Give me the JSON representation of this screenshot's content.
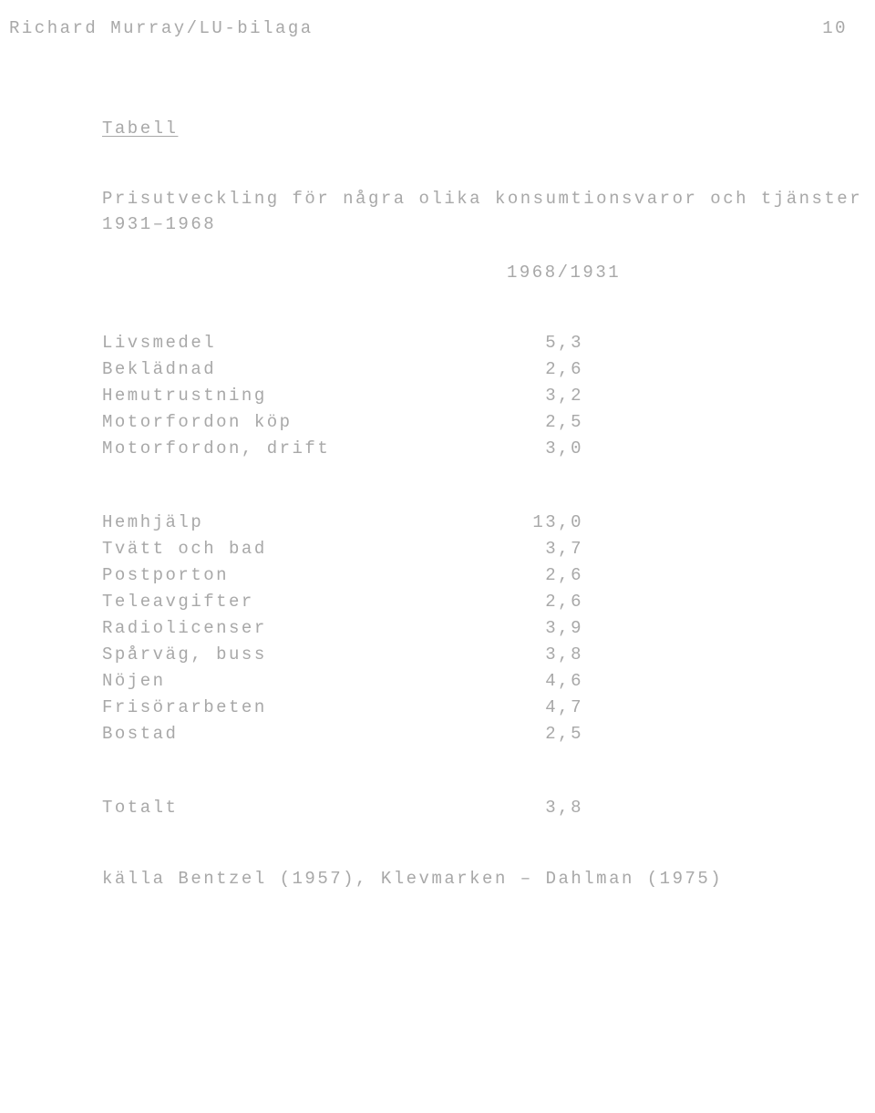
{
  "header": {
    "title": "Richard Murray/LU-bilaga",
    "page": "10"
  },
  "table": {
    "heading": "Tabell",
    "caption_line1": "Prisutveckling för några olika konsumtionsvaror och tjänster",
    "caption_line2": "1931–1968",
    "year_header": "1968/1931",
    "group1": [
      {
        "label": "Livsmedel",
        "value": "5,3"
      },
      {
        "label": "Beklädnad",
        "value": "2,6"
      },
      {
        "label": "Hemutrustning",
        "value": "3,2"
      },
      {
        "label": "Motorfordon köp",
        "value": "2,5"
      },
      {
        "label": "Motorfordon, drift",
        "value": "3,0"
      }
    ],
    "group2": [
      {
        "label": "Hemhjälp",
        "value": "13,0"
      },
      {
        "label": "Tvätt och bad",
        "value": "3,7"
      },
      {
        "label": "Postporton",
        "value": "2,6"
      },
      {
        "label": "Teleavgifter",
        "value": "2,6"
      },
      {
        "label": "Radiolicenser",
        "value": "3,9"
      },
      {
        "label": "Spårväg, buss",
        "value": "3,8"
      },
      {
        "label": "Nöjen",
        "value": "4,6"
      },
      {
        "label": "Frisörarbeten",
        "value": "4,7"
      },
      {
        "label": "Bostad",
        "value": "2,5"
      }
    ],
    "total": {
      "label": "Totalt",
      "value": "3,8"
    },
    "source": "källa Bentzel (1957), Klevmarken – Dahlman (1975)"
  },
  "style": {
    "background_color": "#ffffff",
    "text_color": "#a8a8a8",
    "font_family": "Courier New",
    "font_size_pt": 14
  }
}
